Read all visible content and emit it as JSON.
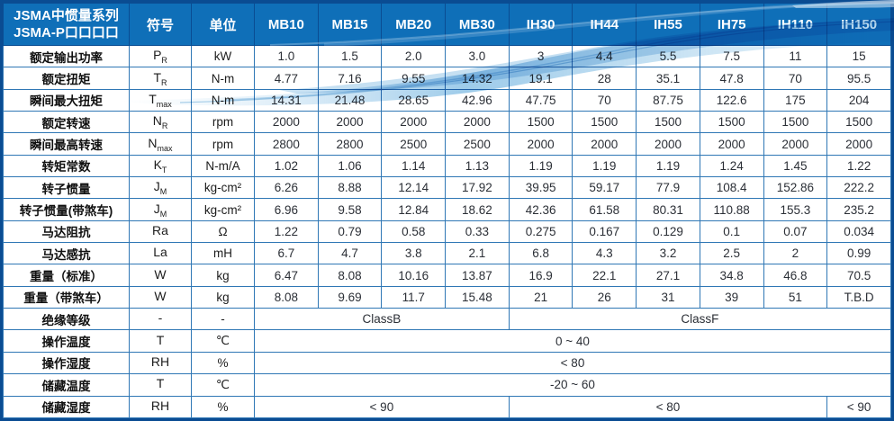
{
  "header": {
    "title_line1": "JSMA中惯量系列",
    "title_line2": "JSMA-P口口口口",
    "symbol_label": "符号",
    "unit_label": "单位"
  },
  "columns": [
    "MB10",
    "MB15",
    "MB20",
    "MB30",
    "IH30",
    "IH44",
    "IH55",
    "IH75",
    "IH110",
    "IH150"
  ],
  "colors": {
    "frame_blue": "#0a4c92",
    "header_blue": "#0f6fb8",
    "grid_blue": "#2f77b5",
    "wave_light_blue": "#8cc2e6"
  },
  "rows": [
    {
      "label": "额定输出功率",
      "sym": "P",
      "sub": "R",
      "unit": "kW",
      "values": [
        "1.0",
        "1.5",
        "2.0",
        "3.0",
        "3",
        "4.4",
        "5.5",
        "7.5",
        "11",
        "15"
      ]
    },
    {
      "label": "额定扭矩",
      "sym": "T",
      "sub": "R",
      "unit": "N-m",
      "values": [
        "4.77",
        "7.16",
        "9.55",
        "14.32",
        "19.1",
        "28",
        "35.1",
        "47.8",
        "70",
        "95.5"
      ]
    },
    {
      "label": "瞬间最大扭矩",
      "sym": "T",
      "sub": "max",
      "unit": "N-m",
      "values": [
        "14.31",
        "21.48",
        "28.65",
        "42.96",
        "47.75",
        "70",
        "87.75",
        "122.6",
        "175",
        "204"
      ]
    },
    {
      "label": "额定转速",
      "sym": "N",
      "sub": "R",
      "unit": "rpm",
      "values": [
        "2000",
        "2000",
        "2000",
        "2000",
        "1500",
        "1500",
        "1500",
        "1500",
        "1500",
        "1500"
      ]
    },
    {
      "label": "瞬间最高转速",
      "sym": "N",
      "sub": "max",
      "unit": "rpm",
      "values": [
        "2800",
        "2800",
        "2500",
        "2500",
        "2000",
        "2000",
        "2000",
        "2000",
        "2000",
        "2000"
      ]
    },
    {
      "label": "转矩常数",
      "sym": "K",
      "sub": "T",
      "unit": "N-m/A",
      "values": [
        "1.02",
        "1.06",
        "1.14",
        "1.13",
        "1.19",
        "1.19",
        "1.19",
        "1.24",
        "1.45",
        "1.22"
      ]
    },
    {
      "label": "转子惯量",
      "sym": "J",
      "sub": "M",
      "unit": "kg-cm²",
      "values": [
        "6.26",
        "8.88",
        "12.14",
        "17.92",
        "39.95",
        "59.17",
        "77.9",
        "108.4",
        "152.86",
        "222.2"
      ]
    },
    {
      "label": "转子惯量(带煞车)",
      "sym": "J",
      "sub": "M",
      "unit": "kg-cm²",
      "values": [
        "6.96",
        "9.58",
        "12.84",
        "18.62",
        "42.36",
        "61.58",
        "80.31",
        "110.88",
        "155.3",
        "235.2"
      ]
    },
    {
      "label": "马达阻抗",
      "sym": "Ra",
      "sub": "",
      "unit": "Ω",
      "values": [
        "1.22",
        "0.79",
        "0.58",
        "0.33",
        "0.275",
        "0.167",
        "0.129",
        "0.1",
        "0.07",
        "0.034"
      ]
    },
    {
      "label": "马达感抗",
      "sym": "La",
      "sub": "",
      "unit": "mH",
      "values": [
        "6.7",
        "4.7",
        "3.8",
        "2.1",
        "6.8",
        "4.3",
        "3.2",
        "2.5",
        "2",
        "0.99"
      ]
    },
    {
      "label": "重量（标准）",
      "sym": "W",
      "sub": "",
      "unit": "kg",
      "values": [
        "6.47",
        "8.08",
        "10.16",
        "13.87",
        "16.9",
        "22.1",
        "27.1",
        "34.8",
        "46.8",
        "70.5"
      ]
    },
    {
      "label": "重量（带煞车）",
      "sym": "W",
      "sub": "",
      "unit": "kg",
      "values": [
        "8.08",
        "9.69",
        "11.7",
        "15.48",
        "21",
        "26",
        "31",
        "39",
        "51",
        "T.B.D"
      ]
    },
    {
      "label": "绝缘等级",
      "sym": "-",
      "sub": "",
      "unit": "-",
      "spans": [
        {
          "cols": 4,
          "text": "ClassB"
        },
        {
          "cols": 6,
          "text": "ClassF"
        }
      ]
    },
    {
      "label": "操作温度",
      "sym": "T",
      "sub": "",
      "unit": "℃",
      "spans": [
        {
          "cols": 10,
          "text": "0 ~ 40"
        }
      ]
    },
    {
      "label": "操作湿度",
      "sym": "RH",
      "sub": "",
      "unit": "%",
      "spans": [
        {
          "cols": 10,
          "text": "< 80"
        }
      ]
    },
    {
      "label": "储藏温度",
      "sym": "T",
      "sub": "",
      "unit": "℃",
      "spans": [
        {
          "cols": 10,
          "text": "-20 ~ 60"
        }
      ]
    },
    {
      "label": "储藏湿度",
      "sym": "RH",
      "sub": "",
      "unit": "%",
      "spans": [
        {
          "cols": 4,
          "text": "< 90"
        },
        {
          "cols": 5,
          "text": "< 80"
        },
        {
          "cols": 1,
          "text": "< 90"
        }
      ]
    }
  ]
}
